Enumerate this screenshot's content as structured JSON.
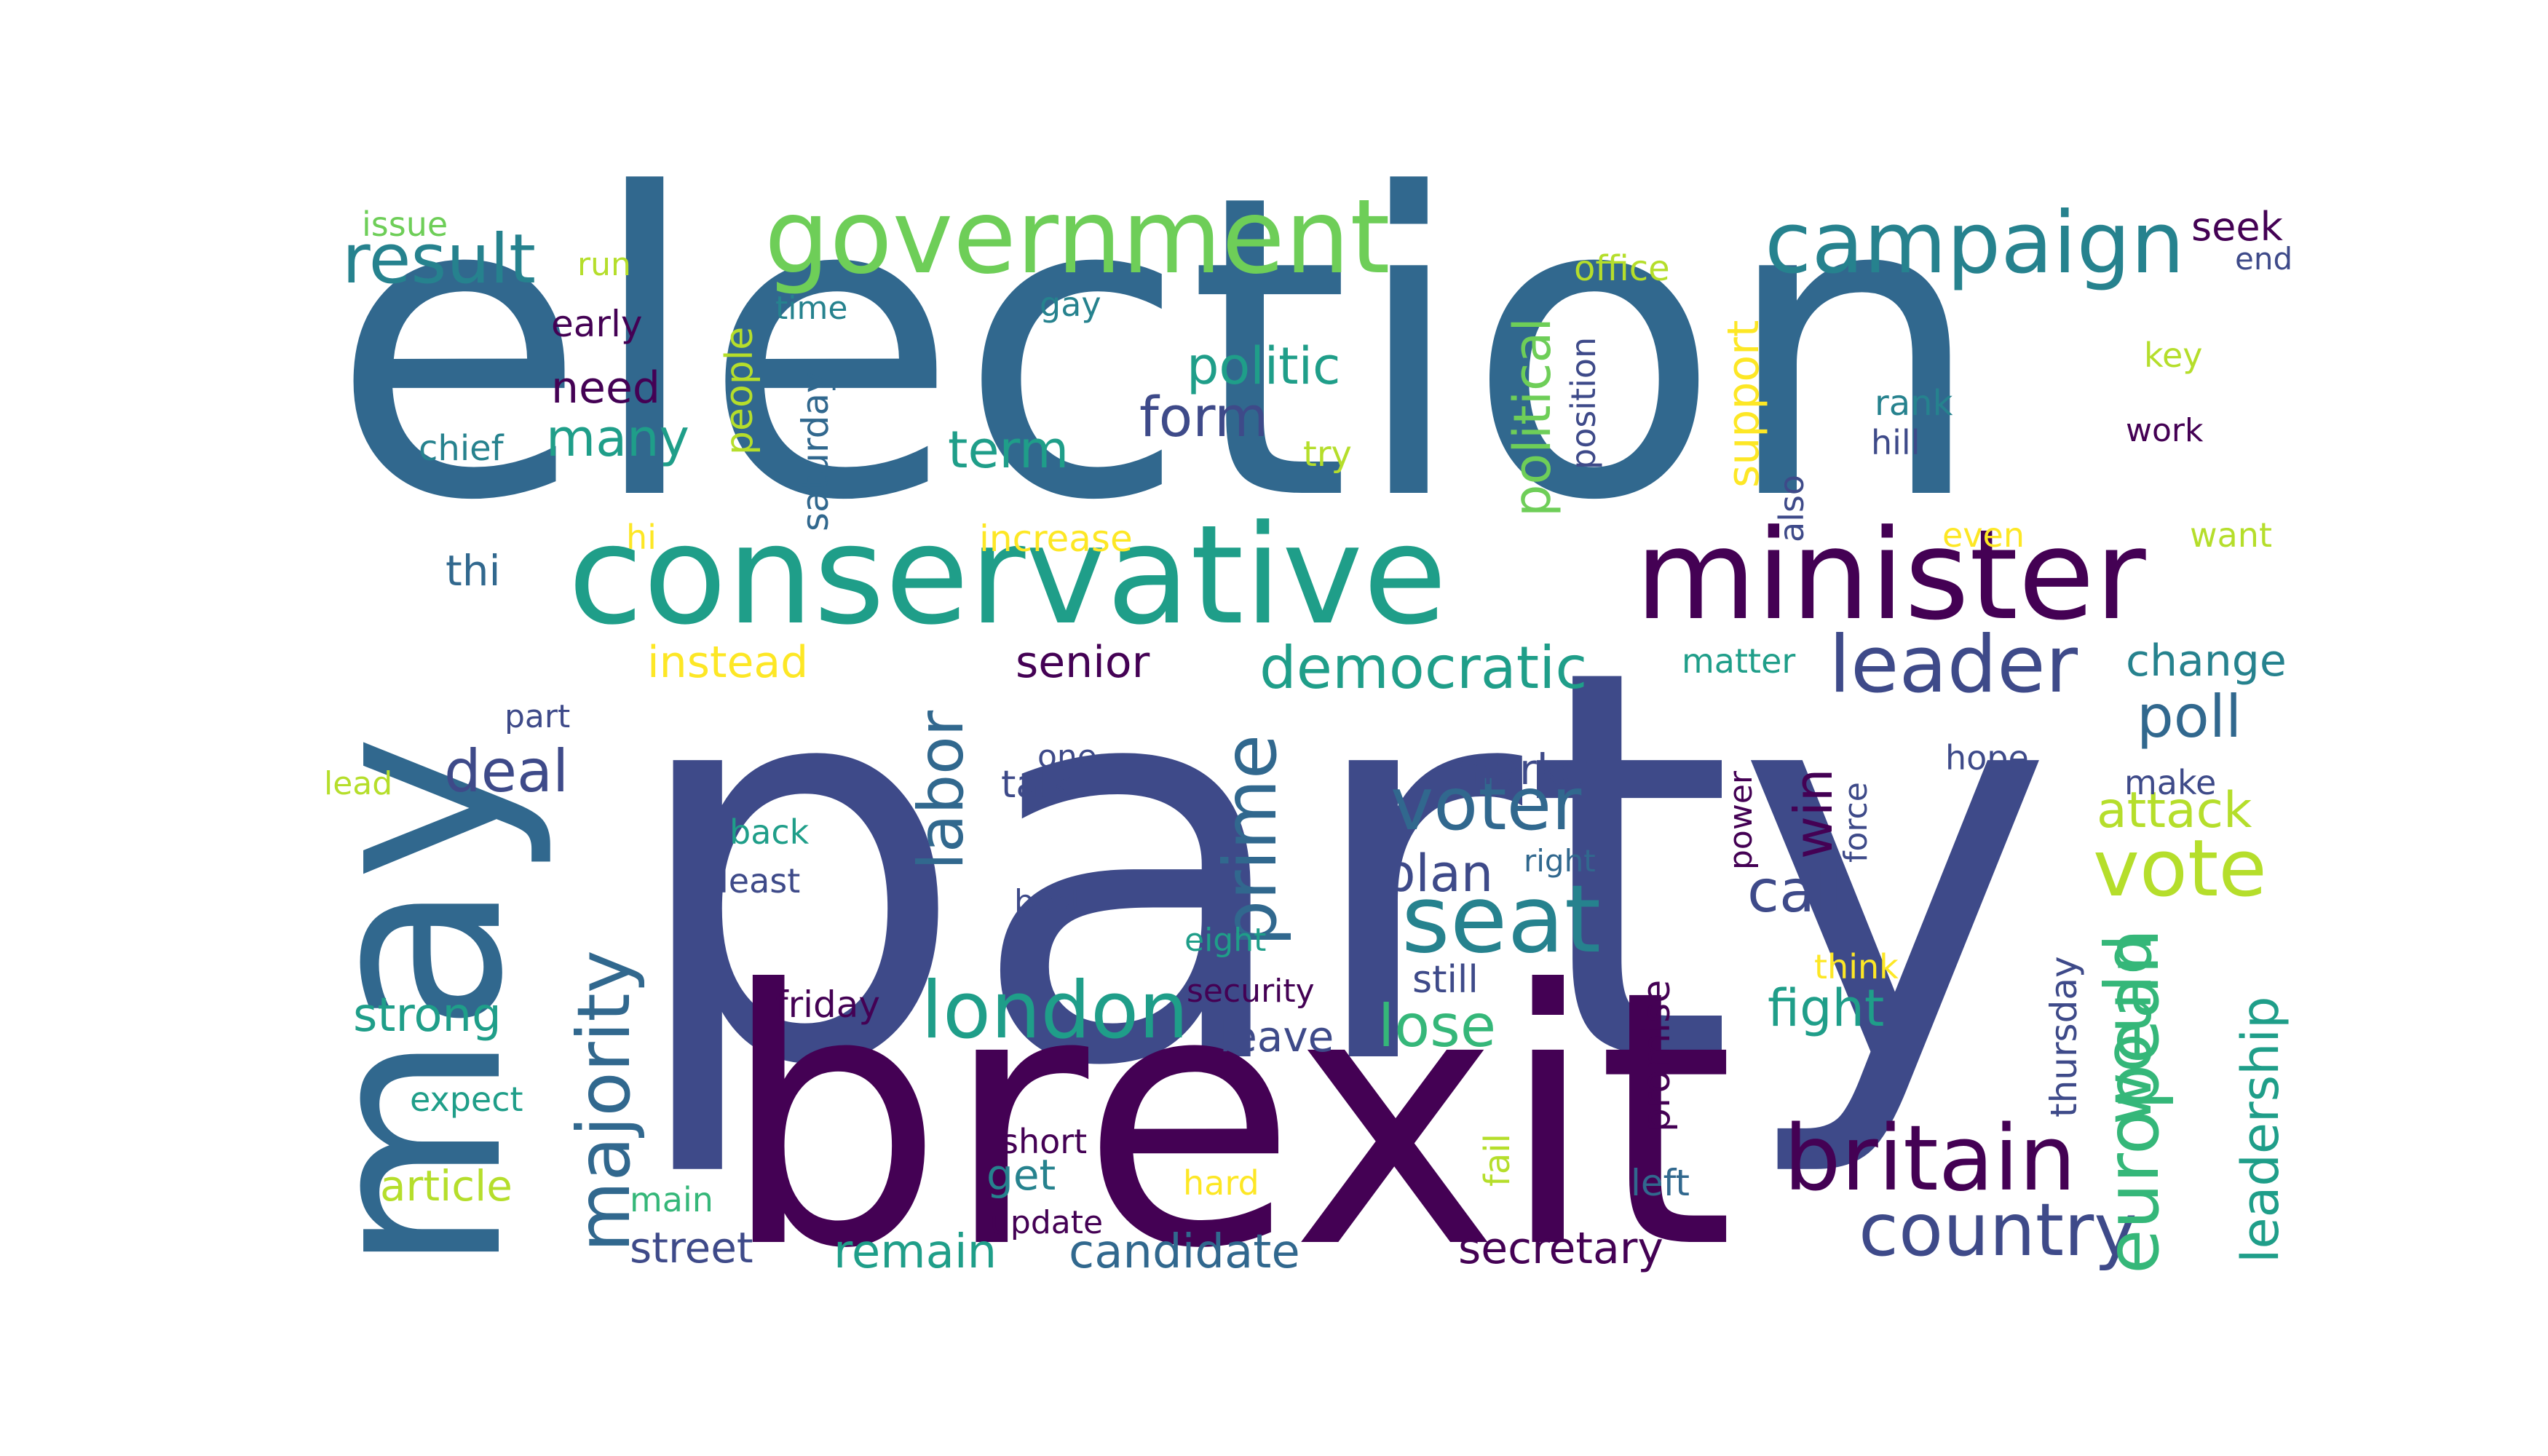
{
  "colors": {
    "c1": "#440154",
    "c2": "#3e4a89",
    "c3": "#31688e",
    "c4": "#26828e",
    "c5": "#1f9e89",
    "c6": "#35b779",
    "c7": "#6ece58",
    "c8": "#b5de2b",
    "c9": "#fde725"
  },
  "words": [
    {
      "text": "party",
      "color": "c2"
    },
    {
      "text": "election",
      "color": "c3"
    },
    {
      "text": "brexit",
      "color": "c1"
    },
    {
      "text": "may",
      "color": "c3"
    },
    {
      "text": "conservative",
      "color": "c5"
    },
    {
      "text": "minister",
      "color": "c1"
    },
    {
      "text": "government",
      "color": "c7"
    },
    {
      "text": "campaign",
      "color": "c4"
    },
    {
      "text": "result",
      "color": "c4"
    },
    {
      "text": "britain",
      "color": "c1"
    },
    {
      "text": "country",
      "color": "c2"
    },
    {
      "text": "london",
      "color": "c5"
    },
    {
      "text": "seat",
      "color": "c4"
    },
    {
      "text": "leader",
      "color": "c2"
    },
    {
      "text": "vote",
      "color": "c8"
    },
    {
      "text": "european",
      "color": "c6"
    },
    {
      "text": "majority",
      "color": "c3"
    },
    {
      "text": "prime",
      "color": "c3"
    },
    {
      "text": "voter",
      "color": "c3"
    },
    {
      "text": "democratic",
      "color": "c5"
    },
    {
      "text": "poll",
      "color": "c3"
    },
    {
      "text": "would",
      "color": "c6"
    },
    {
      "text": "leadership",
      "color": "c5"
    },
    {
      "text": "labor",
      "color": "c3"
    },
    {
      "text": "deal",
      "color": "c2"
    },
    {
      "text": "call",
      "color": "c2"
    },
    {
      "text": "attack",
      "color": "c8"
    },
    {
      "text": "lose",
      "color": "c6"
    },
    {
      "text": "win",
      "color": "c1"
    },
    {
      "text": "political",
      "color": "c7"
    },
    {
      "text": "politic",
      "color": "c5"
    },
    {
      "text": "form",
      "color": "c2"
    },
    {
      "text": "term",
      "color": "c5"
    },
    {
      "text": "many",
      "color": "c5"
    },
    {
      "text": "need",
      "color": "c1"
    },
    {
      "text": "support",
      "color": "c9"
    },
    {
      "text": "senior",
      "color": "c1"
    },
    {
      "text": "instead",
      "color": "c9"
    },
    {
      "text": "change",
      "color": "c4"
    },
    {
      "text": "fight",
      "color": "c5"
    },
    {
      "text": "plan",
      "color": "c2"
    },
    {
      "text": "candidate",
      "color": "c3"
    },
    {
      "text": "remain",
      "color": "c5"
    },
    {
      "text": "secretary",
      "color": "c1"
    },
    {
      "text": "strong",
      "color": "c5"
    },
    {
      "text": "article",
      "color": "c8"
    },
    {
      "text": "street",
      "color": "c2"
    },
    {
      "text": "market",
      "color": "c2"
    },
    {
      "text": "thi",
      "color": "c3"
    },
    {
      "text": "talk",
      "color": "c2"
    },
    {
      "text": "get",
      "color": "c4"
    },
    {
      "text": "leave",
      "color": "c2"
    },
    {
      "text": "still",
      "color": "c2"
    },
    {
      "text": "thursday",
      "color": "c2"
    },
    {
      "text": "promise",
      "color": "c1"
    },
    {
      "text": "people",
      "color": "c8"
    },
    {
      "text": "saturday",
      "color": "c3"
    },
    {
      "text": "position",
      "color": "c2"
    },
    {
      "text": "also",
      "color": "c2"
    },
    {
      "text": "power",
      "color": "c1"
    },
    {
      "text": "force",
      "color": "c2"
    },
    {
      "text": "fail",
      "color": "c8"
    },
    {
      "text": "seek",
      "color": "c1"
    },
    {
      "text": "end",
      "color": "c2"
    },
    {
      "text": "office",
      "color": "c8"
    },
    {
      "text": "key",
      "color": "c8"
    },
    {
      "text": "rank",
      "color": "c4"
    },
    {
      "text": "hill",
      "color": "c2"
    },
    {
      "text": "work",
      "color": "c1"
    },
    {
      "text": "want",
      "color": "c8"
    },
    {
      "text": "even",
      "color": "c9"
    },
    {
      "text": "matter",
      "color": "c5"
    },
    {
      "text": "hope",
      "color": "c2"
    },
    {
      "text": "make",
      "color": "c2"
    },
    {
      "text": "think",
      "color": "c9"
    },
    {
      "text": "left",
      "color": "c3"
    },
    {
      "text": "issue",
      "color": "c7"
    },
    {
      "text": "run",
      "color": "c8"
    },
    {
      "text": "time",
      "color": "c4"
    },
    {
      "text": "gay",
      "color": "c4"
    },
    {
      "text": "early",
      "color": "c1"
    },
    {
      "text": "chief",
      "color": "c4"
    },
    {
      "text": "try",
      "color": "c8"
    },
    {
      "text": "hi",
      "color": "c9"
    },
    {
      "text": "increase",
      "color": "c9"
    },
    {
      "text": "part",
      "color": "c2"
    },
    {
      "text": "lead",
      "color": "c8"
    },
    {
      "text": "one",
      "color": "c2"
    },
    {
      "text": "back",
      "color": "c5"
    },
    {
      "text": "least",
      "color": "c2"
    },
    {
      "text": "best",
      "color": "c2"
    },
    {
      "text": "right",
      "color": "c3"
    },
    {
      "text": "eight",
      "color": "c5"
    },
    {
      "text": "friday",
      "color": "c1"
    },
    {
      "text": "security",
      "color": "c1"
    },
    {
      "text": "expect",
      "color": "c5"
    },
    {
      "text": "short",
      "color": "c1"
    },
    {
      "text": "hard",
      "color": "c9"
    },
    {
      "text": "main",
      "color": "c6"
    },
    {
      "text": "update",
      "color": "c1"
    }
  ]
}
